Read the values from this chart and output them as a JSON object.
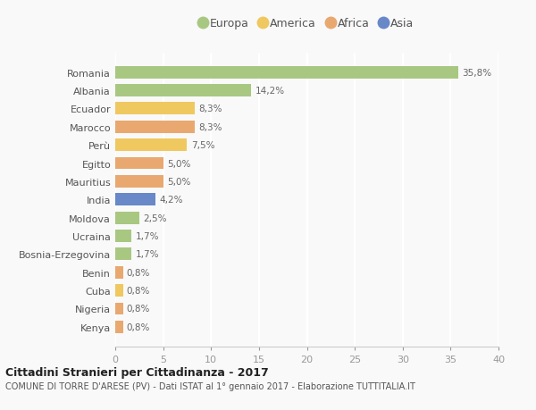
{
  "countries": [
    "Romania",
    "Albania",
    "Ecuador",
    "Marocco",
    "Perù",
    "Egitto",
    "Mauritius",
    "India",
    "Moldova",
    "Ucraina",
    "Bosnia-Erzegovina",
    "Benin",
    "Cuba",
    "Nigeria",
    "Kenya"
  ],
  "values": [
    35.8,
    14.2,
    8.3,
    8.3,
    7.5,
    5.0,
    5.0,
    4.2,
    2.5,
    1.7,
    1.7,
    0.8,
    0.8,
    0.8,
    0.8
  ],
  "labels": [
    "35,8%",
    "14,2%",
    "8,3%",
    "8,3%",
    "7,5%",
    "5,0%",
    "5,0%",
    "4,2%",
    "2,5%",
    "1,7%",
    "1,7%",
    "0,8%",
    "0,8%",
    "0,8%",
    "0,8%"
  ],
  "continents": [
    "Europa",
    "Europa",
    "America",
    "Africa",
    "America",
    "Africa",
    "Africa",
    "Asia",
    "Europa",
    "Europa",
    "Europa",
    "Africa",
    "America",
    "Africa",
    "Africa"
  ],
  "continent_colors": {
    "Europa": "#a8c882",
    "America": "#f0c860",
    "Africa": "#e8a870",
    "Asia": "#6888c8"
  },
  "legend_order": [
    "Europa",
    "America",
    "Africa",
    "Asia"
  ],
  "title": "Cittadini Stranieri per Cittadinanza - 2017",
  "subtitle": "COMUNE DI TORRE D'ARESE (PV) - Dati ISTAT al 1° gennaio 2017 - Elaborazione TUTTITALIA.IT",
  "xlim": [
    0,
    40
  ],
  "xticks": [
    0,
    5,
    10,
    15,
    20,
    25,
    30,
    35,
    40
  ],
  "background_color": "#f9f9f9",
  "grid_color": "#ffffff",
  "bar_height": 0.68,
  "label_color": "#666666",
  "ytick_color": "#555555"
}
